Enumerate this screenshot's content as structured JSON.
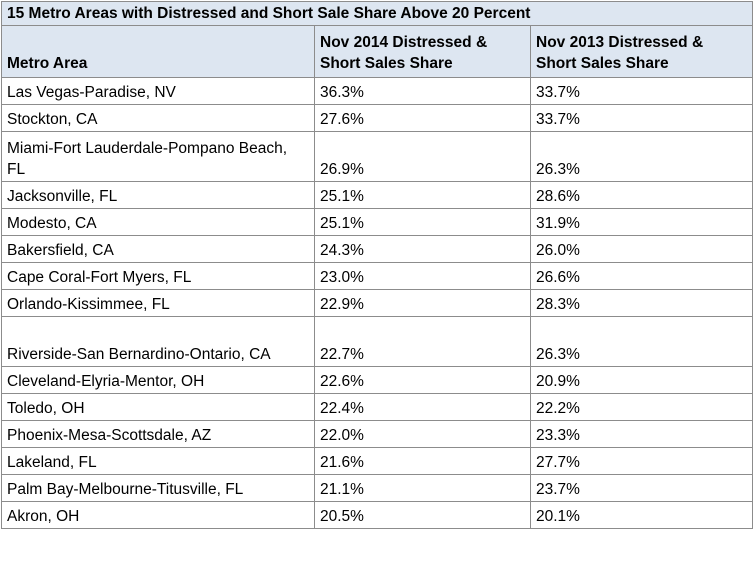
{
  "table": {
    "title": "15 Metro Areas with Distressed and Short Sale Share Above 20 Percent",
    "headers": [
      "Metro Area",
      "Nov 2014 Distressed & Short Sales Share",
      "Nov 2013 Distressed & Short Sales Share"
    ],
    "rows": [
      {
        "metro": "Las Vegas-Paradise, NV",
        "nov2014": "36.3%",
        "nov2013": "33.7%"
      },
      {
        "metro": "Stockton, CA",
        "nov2014": "27.6%",
        "nov2013": "33.7%"
      },
      {
        "metro": "Miami-Fort Lauderdale-Pompano Beach, FL",
        "nov2014": "26.9%",
        "nov2013": "26.3%"
      },
      {
        "metro": "Jacksonville, FL",
        "nov2014": "25.1%",
        "nov2013": "28.6%"
      },
      {
        "metro": "Modesto, CA",
        "nov2014": "25.1%",
        "nov2013": "31.9%"
      },
      {
        "metro": "Bakersfield, CA",
        "nov2014": "24.3%",
        "nov2013": "26.0%"
      },
      {
        "metro": "Cape Coral-Fort Myers, FL",
        "nov2014": "23.0%",
        "nov2013": "26.6%"
      },
      {
        "metro": "Orlando-Kissimmee, FL",
        "nov2014": "22.9%",
        "nov2013": "28.3%"
      },
      {
        "metro": "Riverside-San Bernardino-Ontario, CA",
        "nov2014": "22.7%",
        "nov2013": "26.3%"
      },
      {
        "metro": "Cleveland-Elyria-Mentor, OH",
        "nov2014": "22.6%",
        "nov2013": "20.9%"
      },
      {
        "metro": "Toledo, OH",
        "nov2014": "22.4%",
        "nov2013": "22.2%"
      },
      {
        "metro": "Phoenix-Mesa-Scottsdale, AZ",
        "nov2014": "22.0%",
        "nov2013": "23.3%"
      },
      {
        "metro": "Lakeland, FL",
        "nov2014": "21.6%",
        "nov2013": "27.7%"
      },
      {
        "metro": "Palm Bay-Melbourne-Titusville, FL",
        "nov2014": "21.1%",
        "nov2013": "23.7%"
      },
      {
        "metro": "Akron, OH",
        "nov2014": "20.5%",
        "nov2013": "20.1%"
      }
    ]
  }
}
